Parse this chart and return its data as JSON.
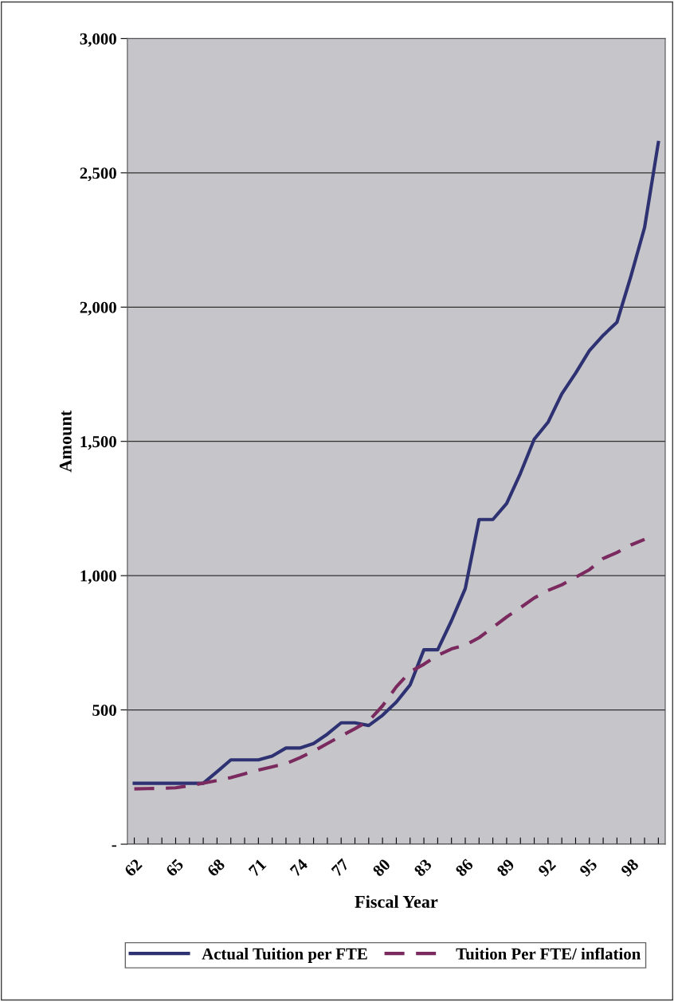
{
  "chart_data": {
    "type": "line",
    "xlabel": "Fiscal Year",
    "ylabel": "Amount",
    "categories": [
      "62",
      null,
      null,
      "65",
      null,
      null,
      "68",
      null,
      null,
      "71",
      null,
      null,
      "74",
      null,
      null,
      "77",
      null,
      null,
      "80",
      null,
      null,
      "83",
      null,
      null,
      "86",
      null,
      null,
      "89",
      null,
      null,
      "92",
      null,
      null,
      "95",
      null,
      null,
      "98",
      null,
      null
    ],
    "series": [
      {
        "name": "Actual Tuition per FTE",
        "color": "#2e3272",
        "line_style": "solid",
        "values": [
          227,
          227,
          227,
          227,
          227,
          227,
          270,
          314,
          314,
          314,
          328,
          358,
          358,
          375,
          410,
          452,
          452,
          442,
          480,
          529,
          593,
          724,
          724,
          832,
          952,
          1209,
          1209,
          1269,
          1381,
          1508,
          1571,
          1677,
          1754,
          1838,
          1895,
          1944,
          2113,
          2296,
          2613
        ]
      },
      {
        "name": "Tuition Per FTE/ inflation",
        "color": "#7a2a5e",
        "line_style": "dashed",
        "values": [
          206,
          207,
          208,
          210,
          218,
          227,
          237,
          248,
          262,
          276,
          288,
          300,
          322,
          346,
          375,
          403,
          430,
          459,
          515,
          586,
          642,
          670,
          703,
          727,
          741,
          769,
          807,
          846,
          881,
          917,
          945,
          966,
          994,
          1022,
          1064,
          1086,
          1114,
          1135,
          null
        ]
      }
    ],
    "ylim": [
      0,
      3000
    ],
    "yticks": [
      {
        "value": 0,
        "label": "-"
      },
      500,
      {
        "value": 1000,
        "label": "1,000"
      },
      {
        "value": 1500,
        "label": "1,500"
      },
      {
        "value": 2000,
        "label": "2,000"
      },
      {
        "value": 2500,
        "label": "2,500"
      },
      {
        "value": 3000,
        "label": "3,000"
      }
    ],
    "grid": "y",
    "legend": "bottom",
    "marker": "none"
  }
}
